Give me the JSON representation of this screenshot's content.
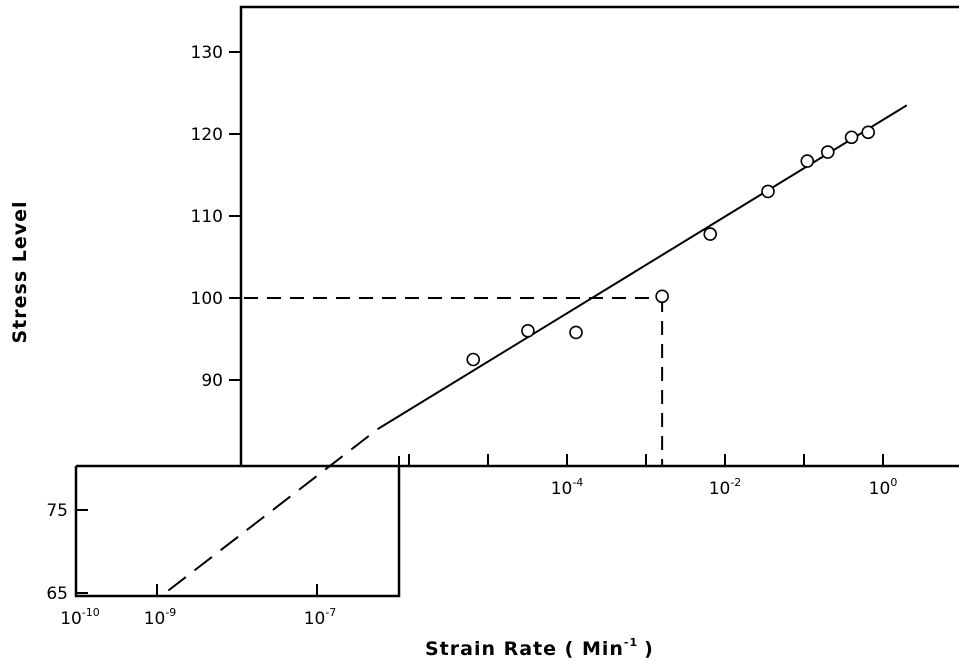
{
  "chart_data": {
    "type": "scatter",
    "title": "",
    "xlabel": "Strain  Rate  ( Min",
    "xlabel_sup": "-1",
    "xlabel_close": ")",
    "ylabel": "Stress   Level",
    "x_scale": "log",
    "x_main_range": [
      1e-06,
      10
    ],
    "y_main_range": [
      80,
      135
    ],
    "x_inset_range": [
      1e-10,
      1e-06
    ],
    "y_inset_range": [
      65,
      80
    ],
    "grid": false,
    "y_ticks_main": [
      "130",
      "120",
      "110",
      "100",
      "90"
    ],
    "y_ticks_inset": [
      "75",
      "65"
    ],
    "x_ticks_main": [
      {
        "base": "10",
        "exp": "-4"
      },
      {
        "base": "10",
        "exp": "-2"
      },
      {
        "base": "10",
        "exp": "0"
      }
    ],
    "x_ticks_inset": [
      {
        "base": "10",
        "exp": "-10"
      },
      {
        "base": "10",
        "exp": "-9"
      },
      {
        "base": "10",
        "exp": "-7"
      }
    ],
    "series": [
      {
        "type": "scatter",
        "points": [
          {
            "x": 6.5e-06,
            "y": 92.5
          },
          {
            "x": 3.2e-05,
            "y": 96.0
          },
          {
            "x": 0.00013,
            "y": 95.8
          },
          {
            "x": 0.0016,
            "y": 100.2
          },
          {
            "x": 0.0065,
            "y": 107.8
          },
          {
            "x": 0.035,
            "y": 113.0
          },
          {
            "x": 0.11,
            "y": 116.7
          },
          {
            "x": 0.2,
            "y": 117.8
          },
          {
            "x": 0.4,
            "y": 119.6
          },
          {
            "x": 0.65,
            "y": 120.2
          }
        ]
      },
      {
        "type": "line",
        "style": "solid",
        "points": [
          {
            "x": 4e-07,
            "y": 84
          },
          {
            "x": 2,
            "y": 123.5
          }
        ]
      },
      {
        "type": "line",
        "style": "dashed",
        "points": [
          {
            "x": 9e-10,
            "y": 65.3
          },
          {
            "x": 4e-07,
            "y": 84
          }
        ]
      }
    ],
    "annotations": [
      {
        "type": "dashed-horizontal",
        "y": 100,
        "x_from": 1e-06,
        "x_to": 0.0016
      },
      {
        "type": "dashed-vertical",
        "x": 0.0016,
        "y_from": 80,
        "y_to": 100
      }
    ]
  }
}
